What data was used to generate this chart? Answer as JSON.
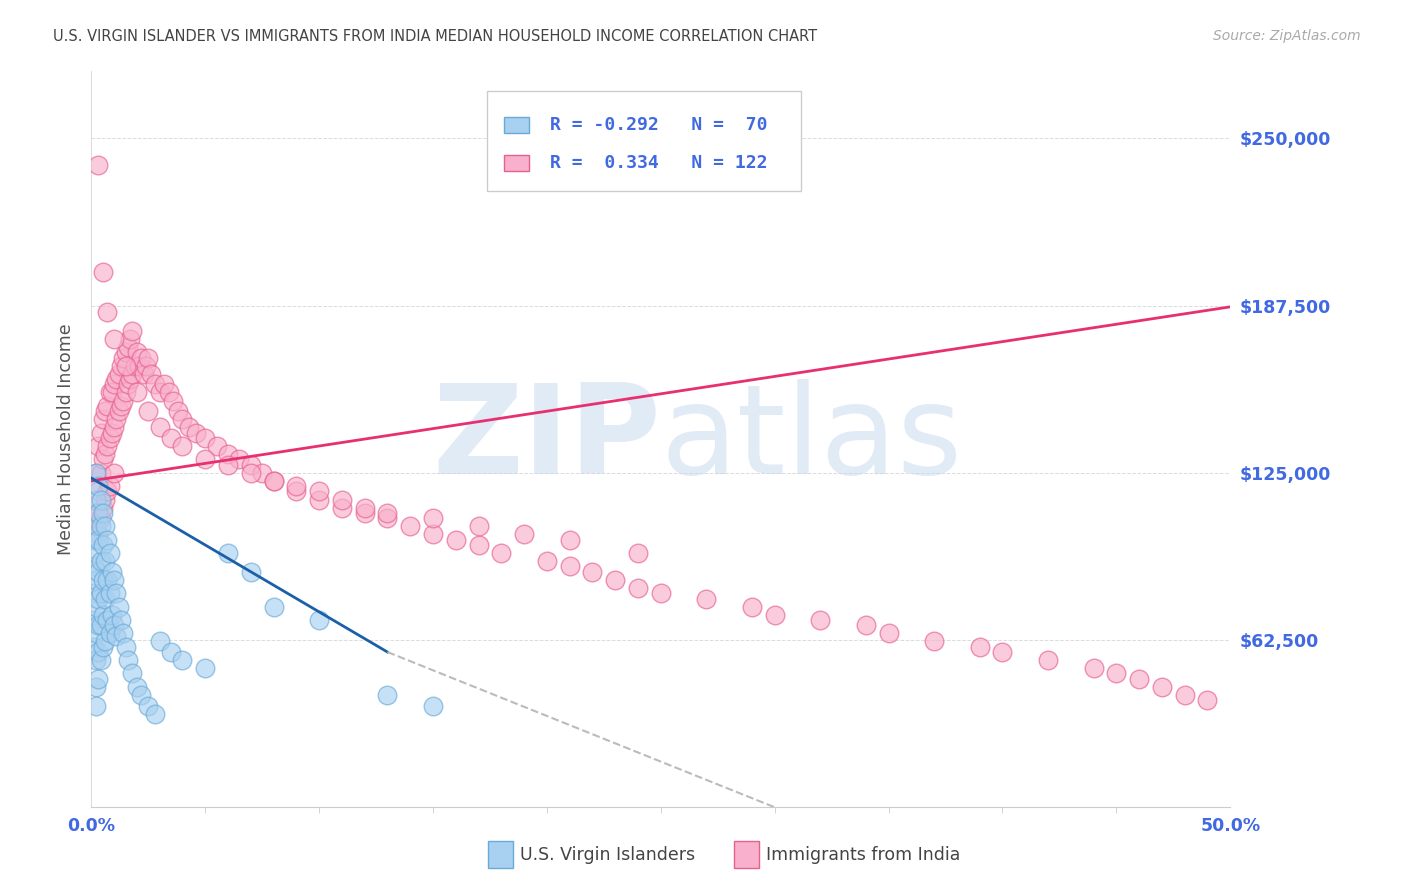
{
  "title": "U.S. VIRGIN ISLANDER VS IMMIGRANTS FROM INDIA MEDIAN HOUSEHOLD INCOME CORRELATION CHART",
  "source": "Source: ZipAtlas.com",
  "ylabel": "Median Household Income",
  "xlim": [
    0.0,
    0.5
  ],
  "ylim": [
    0,
    275000
  ],
  "yticks": [
    62500,
    125000,
    187500,
    250000
  ],
  "ytick_labels": [
    "$62,500",
    "$125,000",
    "$187,500",
    "$250,000"
  ],
  "xtick_left": "0.0%",
  "xtick_right": "50.0%",
  "background_color": "#ffffff",
  "grid_color": "#cccccc",
  "title_color": "#444444",
  "axis_label_color": "#4169e1",
  "legend_text1": "R = -0.292   N =  70",
  "legend_text2": "R =  0.334   N = 122",
  "series1_color": "#a8d0f0",
  "series1_edge": "#6aaad8",
  "series2_color": "#f8b0cc",
  "series2_edge": "#e8608c",
  "trendline1_color": "#1a5fa8",
  "trendline2_color": "#e83070",
  "trendline_dash_color": "#bbbbbb",
  "watermark_zip": "ZIP",
  "watermark_atlas": "atlas",
  "watermark_color": "#c5d8ee",
  "bottom_label1": "U.S. Virgin Islanders",
  "bottom_label2": "Immigrants from India",
  "s1_x": [
    0.001,
    0.001,
    0.001,
    0.001,
    0.001,
    0.002,
    0.002,
    0.002,
    0.002,
    0.002,
    0.002,
    0.002,
    0.002,
    0.002,
    0.002,
    0.003,
    0.003,
    0.003,
    0.003,
    0.003,
    0.003,
    0.003,
    0.003,
    0.004,
    0.004,
    0.004,
    0.004,
    0.004,
    0.004,
    0.005,
    0.005,
    0.005,
    0.005,
    0.005,
    0.006,
    0.006,
    0.006,
    0.006,
    0.007,
    0.007,
    0.007,
    0.008,
    0.008,
    0.008,
    0.009,
    0.009,
    0.01,
    0.01,
    0.011,
    0.011,
    0.012,
    0.013,
    0.014,
    0.015,
    0.016,
    0.018,
    0.02,
    0.022,
    0.025,
    0.028,
    0.03,
    0.035,
    0.04,
    0.05,
    0.06,
    0.07,
    0.08,
    0.1,
    0.13,
    0.15
  ],
  "s1_y": [
    100000,
    90000,
    80000,
    70000,
    60000,
    125000,
    115000,
    105000,
    95000,
    85000,
    75000,
    65000,
    55000,
    45000,
    38000,
    120000,
    110000,
    100000,
    88000,
    78000,
    68000,
    58000,
    48000,
    115000,
    105000,
    92000,
    80000,
    68000,
    55000,
    110000,
    98000,
    85000,
    72000,
    60000,
    105000,
    92000,
    78000,
    62000,
    100000,
    85000,
    70000,
    95000,
    80000,
    65000,
    88000,
    72000,
    85000,
    68000,
    80000,
    64000,
    75000,
    70000,
    65000,
    60000,
    55000,
    50000,
    45000,
    42000,
    38000,
    35000,
    62000,
    58000,
    55000,
    52000,
    95000,
    88000,
    75000,
    70000,
    42000,
    38000
  ],
  "s2_x": [
    0.001,
    0.002,
    0.002,
    0.003,
    0.003,
    0.003,
    0.004,
    0.004,
    0.004,
    0.005,
    0.005,
    0.005,
    0.006,
    0.006,
    0.006,
    0.007,
    0.007,
    0.007,
    0.008,
    0.008,
    0.008,
    0.009,
    0.009,
    0.01,
    0.01,
    0.01,
    0.011,
    0.011,
    0.012,
    0.012,
    0.013,
    0.013,
    0.014,
    0.014,
    0.015,
    0.015,
    0.016,
    0.016,
    0.017,
    0.017,
    0.018,
    0.018,
    0.019,
    0.02,
    0.021,
    0.022,
    0.023,
    0.024,
    0.025,
    0.026,
    0.028,
    0.03,
    0.032,
    0.034,
    0.036,
    0.038,
    0.04,
    0.043,
    0.046,
    0.05,
    0.055,
    0.06,
    0.065,
    0.07,
    0.075,
    0.08,
    0.09,
    0.1,
    0.11,
    0.12,
    0.13,
    0.14,
    0.15,
    0.16,
    0.17,
    0.18,
    0.2,
    0.21,
    0.22,
    0.23,
    0.24,
    0.25,
    0.27,
    0.29,
    0.3,
    0.32,
    0.34,
    0.35,
    0.37,
    0.39,
    0.4,
    0.42,
    0.44,
    0.45,
    0.46,
    0.47,
    0.48,
    0.49,
    0.003,
    0.005,
    0.007,
    0.01,
    0.015,
    0.02,
    0.025,
    0.03,
    0.035,
    0.04,
    0.05,
    0.06,
    0.07,
    0.08,
    0.09,
    0.1,
    0.11,
    0.12,
    0.13,
    0.15,
    0.17,
    0.19,
    0.21,
    0.24
  ],
  "s2_y": [
    108000,
    125000,
    110000,
    135000,
    118000,
    102000,
    140000,
    125000,
    108000,
    145000,
    130000,
    112000,
    148000,
    132000,
    115000,
    150000,
    135000,
    118000,
    155000,
    138000,
    120000,
    155000,
    140000,
    158000,
    142000,
    125000,
    160000,
    145000,
    162000,
    148000,
    165000,
    150000,
    168000,
    152000,
    170000,
    155000,
    172000,
    158000,
    175000,
    160000,
    178000,
    162000,
    165000,
    170000,
    165000,
    168000,
    162000,
    165000,
    168000,
    162000,
    158000,
    155000,
    158000,
    155000,
    152000,
    148000,
    145000,
    142000,
    140000,
    138000,
    135000,
    132000,
    130000,
    128000,
    125000,
    122000,
    118000,
    115000,
    112000,
    110000,
    108000,
    105000,
    102000,
    100000,
    98000,
    95000,
    92000,
    90000,
    88000,
    85000,
    82000,
    80000,
    78000,
    75000,
    72000,
    70000,
    68000,
    65000,
    62000,
    60000,
    58000,
    55000,
    52000,
    50000,
    48000,
    45000,
    42000,
    40000,
    240000,
    200000,
    185000,
    175000,
    165000,
    155000,
    148000,
    142000,
    138000,
    135000,
    130000,
    128000,
    125000,
    122000,
    120000,
    118000,
    115000,
    112000,
    110000,
    108000,
    105000,
    102000,
    100000,
    95000
  ]
}
